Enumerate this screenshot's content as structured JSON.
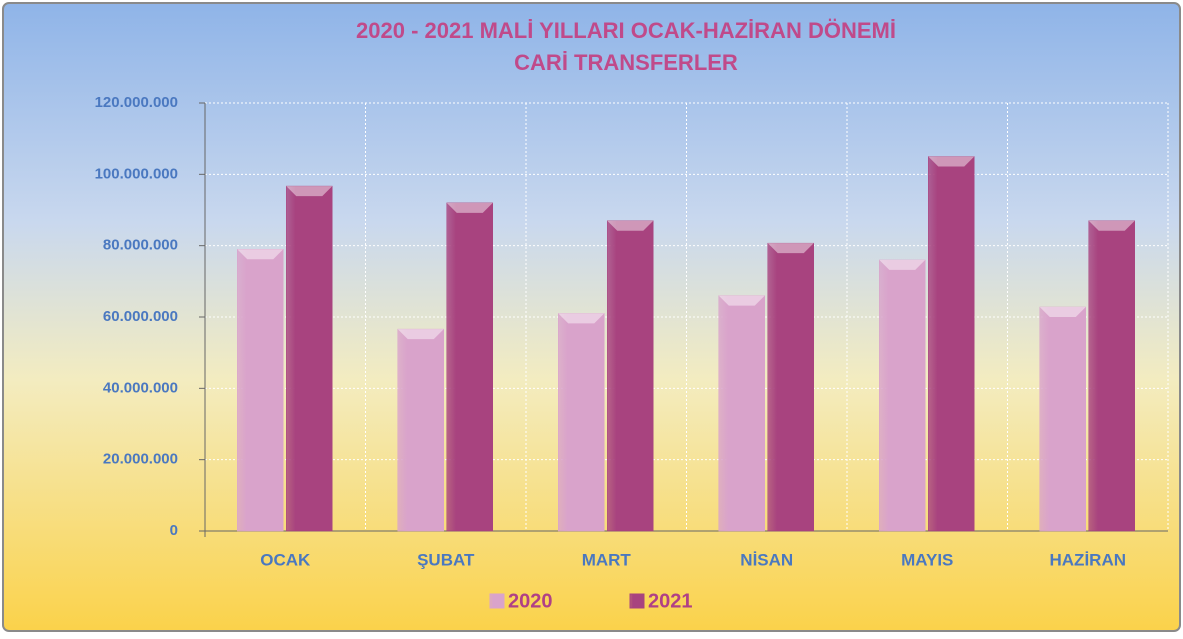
{
  "chart_data": {
    "type": "bar",
    "title": "2020 - 2021  MALİ YILLARI OCAK-HAZİRAN DÖNEMİ",
    "subtitle": "CARİ TRANSFERLER",
    "categories": [
      "OCAK",
      "ŞUBAT",
      "MART",
      "NİSAN",
      "MAYIS",
      "HAZİRAN"
    ],
    "series": [
      {
        "name": "2020",
        "color": "#d9a3cb",
        "values": [
          79000000,
          56600000,
          61000000,
          66000000,
          76000000,
          62800000
        ]
      },
      {
        "name": "2021",
        "color": "#a8437f",
        "values": [
          96700000,
          92000000,
          87000000,
          80700000,
          105000000,
          87000000
        ]
      }
    ],
    "ylim": [
      0,
      120000000
    ],
    "yticks": [
      0,
      {
        "value": 20000000,
        "label": "20.000.000"
      },
      {
        "value": 40000000,
        "label": "40.000.000"
      },
      {
        "value": 60000000,
        "label": "60.000.000"
      },
      {
        "value": 80000000,
        "label": "80.000.000"
      },
      {
        "value": 100000000,
        "label": "100.000.000"
      },
      {
        "value": 120000000,
        "label": "120.000.000"
      }
    ],
    "grid": true,
    "legend": "bottom"
  }
}
